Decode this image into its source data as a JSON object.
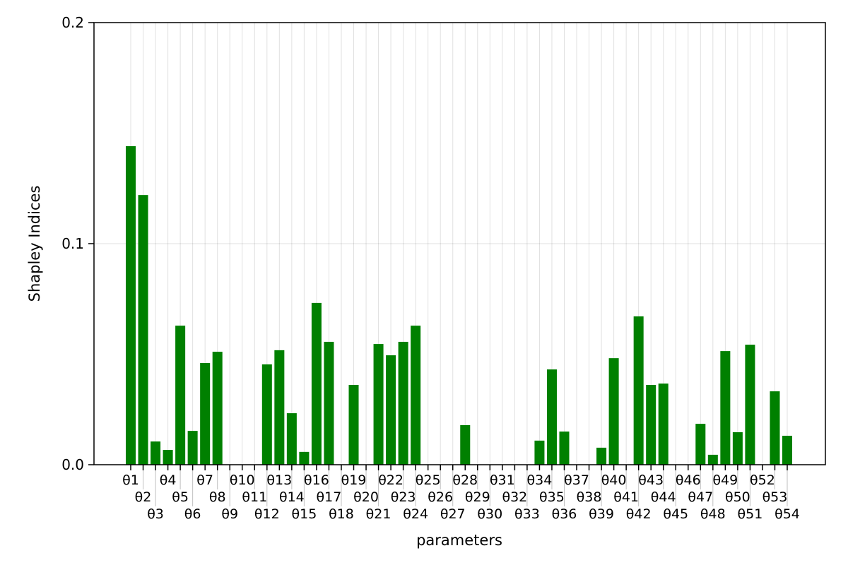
{
  "chart_data": {
    "type": "bar",
    "title": "",
    "xlabel": "parameters",
    "ylabel": "Shapley Indices",
    "ylim": [
      0,
      0.2
    ],
    "yticks": [
      "0.0",
      "0.1",
      "0.2"
    ],
    "ytick_values": [
      0,
      0.1,
      0.2
    ],
    "grid": true,
    "bar_color": "#008000",
    "categories": [
      "θ1",
      "θ2",
      "θ3",
      "θ4",
      "θ5",
      "θ6",
      "θ7",
      "θ8",
      "θ9",
      "θ10",
      "θ11",
      "θ12",
      "θ13",
      "θ14",
      "θ15",
      "θ16",
      "θ17",
      "θ18",
      "θ19",
      "θ20",
      "θ21",
      "θ22",
      "θ23",
      "θ24",
      "θ25",
      "θ26",
      "θ27",
      "θ28",
      "θ29",
      "θ30",
      "θ31",
      "θ32",
      "θ33",
      "θ34",
      "θ35",
      "θ36",
      "θ37",
      "θ38",
      "θ39",
      "θ40",
      "θ41",
      "θ42",
      "θ43",
      "θ44",
      "θ45",
      "θ46",
      "θ47",
      "θ48",
      "θ49",
      "θ50",
      "θ51",
      "θ52",
      "θ53",
      "θ54"
    ],
    "values": [
      0.1441,
      0.122,
      0.0105,
      0.0067,
      0.0629,
      0.0153,
      0.046,
      0.0511,
      0,
      0,
      0,
      0.0454,
      0.0518,
      0.0233,
      0.0058,
      0.0732,
      0.0556,
      0,
      0.0361,
      0,
      0.0546,
      0.0495,
      0.0556,
      0.0629,
      0,
      0,
      0,
      0.0179,
      0,
      0,
      0,
      0,
      0,
      0.0109,
      0.0431,
      0.015,
      0,
      0,
      0.0077,
      0.0482,
      0,
      0.0671,
      0.0361,
      0.0367,
      0,
      0,
      0.0185,
      0.0045,
      0.0514,
      0.0147,
      0.0543,
      0,
      0.0332,
      0.0131
    ]
  }
}
